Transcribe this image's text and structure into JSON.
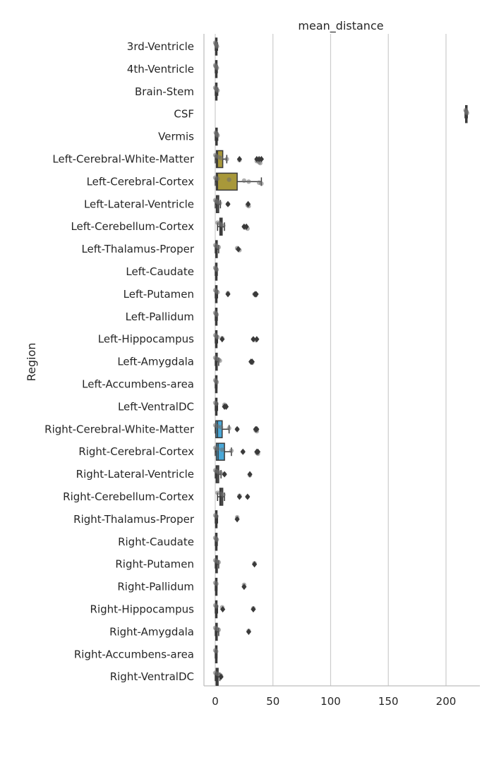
{
  "chart_data": {
    "type": "box",
    "orientation": "horizontal",
    "title": "mean_distance",
    "xlabel": "",
    "ylabel": "Region",
    "xlim": [
      -10,
      230
    ],
    "xticks": [
      0,
      50,
      100,
      150,
      200
    ],
    "grid": "vertical",
    "legend": "none",
    "categories": [
      "3rd-Ventricle",
      "4th-Ventricle",
      "Brain-Stem",
      "CSF",
      "Vermis",
      "Left-Cerebral-White-Matter",
      "Left-Cerebral-Cortex",
      "Left-Lateral-Ventricle",
      "Left-Cerebellum-Cortex",
      "Left-Thalamus-Proper",
      "Left-Caudate",
      "Left-Putamen",
      "Left-Pallidum",
      "Left-Hippocampus",
      "Left-Amygdala",
      "Left-Accumbens-area",
      "Left-VentralDC",
      "Right-Cerebral-White-Matter",
      "Right-Cerebral-Cortex",
      "Right-Lateral-Ventricle",
      "Right-Cerebellum-Cortex",
      "Right-Thalamus-Proper",
      "Right-Caudate",
      "Right-Putamen",
      "Right-Pallidum",
      "Right-Hippocampus",
      "Right-Amygdala",
      "Right-Accumbens-area",
      "Right-VentralDC"
    ],
    "colors": {
      "left_cortex_box": "#a8983a",
      "left_wm_box": "#a8983a",
      "right_box": "#4aa8d8",
      "default_box": "#5a5a5a",
      "points": "#6e6e6e",
      "outliers": "#3a3a3a",
      "grid": "#cccccc",
      "axis": "#bdbdbd"
    },
    "boxes": [
      {
        "q1": 0.3,
        "median": 0.8,
        "q3": 1.2,
        "whislo": 0,
        "whishi": 2,
        "fill": "default_box",
        "fliers": [],
        "points": [
          0,
          0.4,
          0.8,
          1.1,
          1.5
        ]
      },
      {
        "q1": 0.3,
        "median": 0.7,
        "q3": 1.1,
        "whislo": 0,
        "whishi": 1.8,
        "fill": "default_box",
        "fliers": [],
        "points": [
          0,
          0.3,
          0.9,
          1.4
        ]
      },
      {
        "q1": 0.3,
        "median": 0.8,
        "q3": 1.2,
        "whislo": 0,
        "whishi": 2.2,
        "fill": "default_box",
        "fliers": [],
        "points": [
          0,
          0.6,
          1.3,
          2.0
        ]
      },
      {
        "q1": 217,
        "median": 217.5,
        "q3": 218,
        "whislo": 216.5,
        "whishi": 218.5,
        "fill": "default_box",
        "fliers": [],
        "points": [
          217,
          217.4,
          217.8,
          218.2
        ]
      },
      {
        "q1": 0.5,
        "median": 1.0,
        "q3": 1.5,
        "whislo": 0,
        "whishi": 2.2,
        "fill": "default_box",
        "fliers": [],
        "points": [
          0.5,
          1.0,
          1.6,
          2.0
        ]
      },
      {
        "q1": 1.0,
        "median": 2.0,
        "q3": 6.5,
        "whislo": 0,
        "whishi": 10,
        "fill": "left_wm_box",
        "fliers": [
          21,
          36,
          38,
          40
        ],
        "points": [
          0,
          1,
          3,
          5,
          10,
          21,
          36,
          38,
          39
        ]
      },
      {
        "q1": 1.0,
        "median": 2.0,
        "q3": 19,
        "whislo": 0,
        "whishi": 40,
        "fill": "left_cortex_box",
        "fliers": [],
        "points": [
          0,
          2,
          12,
          25,
          29,
          38,
          40
        ]
      },
      {
        "q1": 1.0,
        "median": 1.5,
        "q3": 3.0,
        "whislo": 0,
        "whishi": 4.5,
        "fill": "default_box",
        "fliers": [
          11,
          28.5
        ],
        "points": [
          0,
          1,
          2,
          4,
          11,
          28,
          29
        ]
      },
      {
        "q1": 4.0,
        "median": 5.0,
        "q3": 6.0,
        "whislo": 2,
        "whishi": 8,
        "fill": "default_box",
        "fliers": [
          25,
          27
        ],
        "points": [
          2,
          4,
          5,
          7,
          25,
          26,
          28
        ]
      },
      {
        "q1": 0.5,
        "median": 1.0,
        "q3": 1.5,
        "whislo": 0,
        "whishi": 3,
        "fill": "default_box",
        "fliers": [
          20
        ],
        "points": [
          0,
          1,
          3,
          19,
          20,
          21
        ]
      },
      {
        "q1": 0.3,
        "median": 0.7,
        "q3": 1.1,
        "whislo": 0,
        "whishi": 1.8,
        "fill": "default_box",
        "fliers": [],
        "points": [
          0,
          0.5,
          1.2
        ]
      },
      {
        "q1": 0.3,
        "median": 0.8,
        "q3": 1.2,
        "whislo": 0,
        "whishi": 2,
        "fill": "default_box",
        "fliers": [
          11,
          34.5,
          35.5
        ],
        "points": [
          0,
          1,
          2,
          11,
          34,
          35
        ]
      },
      {
        "q1": 0.3,
        "median": 0.7,
        "q3": 1.1,
        "whislo": 0,
        "whishi": 1.8,
        "fill": "default_box",
        "fliers": [],
        "points": [
          0,
          0.6,
          1.2
        ]
      },
      {
        "q1": 0.3,
        "median": 0.8,
        "q3": 1.2,
        "whislo": 0,
        "whishi": 2,
        "fill": "default_box",
        "fliers": [
          6,
          33,
          36
        ],
        "points": [
          0,
          1,
          2,
          6,
          33,
          35
        ]
      },
      {
        "q1": 0.5,
        "median": 1.0,
        "q3": 1.5,
        "whislo": 0,
        "whishi": 3,
        "fill": "default_box",
        "fliers": [
          31,
          32
        ],
        "points": [
          0,
          1,
          3,
          4,
          31,
          32
        ]
      },
      {
        "q1": 0.3,
        "median": 0.7,
        "q3": 1.1,
        "whislo": 0,
        "whishi": 1.5,
        "fill": "default_box",
        "fliers": [],
        "points": [
          0,
          0.7,
          1.2
        ]
      },
      {
        "q1": 0.3,
        "median": 0.8,
        "q3": 1.2,
        "whislo": 0,
        "whishi": 2,
        "fill": "default_box",
        "fliers": [
          8,
          9.5
        ],
        "points": [
          0,
          1,
          8,
          9
        ]
      },
      {
        "q1": 0.5,
        "median": 2.0,
        "q3": 6.0,
        "whislo": 0,
        "whishi": 12,
        "fill": "right_box",
        "fliers": [
          19,
          35,
          36
        ],
        "points": [
          0,
          2,
          5,
          12,
          19,
          35,
          36
        ]
      },
      {
        "q1": 1.0,
        "median": 2.5,
        "q3": 8.0,
        "whislo": 0,
        "whishi": 14,
        "fill": "right_box",
        "fliers": [
          24,
          36,
          37
        ],
        "points": [
          0,
          2,
          6,
          14,
          24,
          36,
          37
        ]
      },
      {
        "q1": 0.8,
        "median": 1.5,
        "q3": 3.0,
        "whislo": 0,
        "whishi": 5,
        "fill": "default_box",
        "fliers": [
          8,
          30
        ],
        "points": [
          0,
          1,
          3,
          5,
          8,
          30
        ]
      },
      {
        "q1": 4.0,
        "median": 5.0,
        "q3": 6.5,
        "whislo": 2,
        "whishi": 8,
        "fill": "default_box",
        "fliers": [
          21,
          28
        ],
        "points": [
          2,
          5,
          7,
          21,
          28
        ]
      },
      {
        "q1": 0.3,
        "median": 0.8,
        "q3": 1.2,
        "whislo": 0,
        "whishi": 2,
        "fill": "default_box",
        "fliers": [
          19
        ],
        "points": [
          0,
          1,
          19
        ]
      },
      {
        "q1": 0.3,
        "median": 0.7,
        "q3": 1.1,
        "whislo": 0,
        "whishi": 1.8,
        "fill": "default_box",
        "fliers": [],
        "points": [
          0,
          0.8,
          1.3
        ]
      },
      {
        "q1": 0.5,
        "median": 1.0,
        "q3": 1.8,
        "whislo": 0,
        "whishi": 3,
        "fill": "default_box",
        "fliers": [
          34
        ],
        "points": [
          0,
          1,
          3,
          34
        ]
      },
      {
        "q1": 0.3,
        "median": 0.7,
        "q3": 1.1,
        "whislo": 0,
        "whishi": 1.5,
        "fill": "default_box",
        "fliers": [
          25
        ],
        "points": [
          0,
          1,
          25
        ]
      },
      {
        "q1": 0.3,
        "median": 0.8,
        "q3": 1.2,
        "whislo": 0,
        "whishi": 2,
        "fill": "default_box",
        "fliers": [
          6.5,
          33
        ],
        "points": [
          0,
          1,
          6,
          33
        ]
      },
      {
        "q1": 0.5,
        "median": 1.0,
        "q3": 1.5,
        "whislo": 0,
        "whishi": 3,
        "fill": "default_box",
        "fliers": [
          29
        ],
        "points": [
          0,
          1,
          3,
          29
        ]
      },
      {
        "q1": 0.3,
        "median": 0.7,
        "q3": 1.1,
        "whislo": 0,
        "whishi": 1.5,
        "fill": "default_box",
        "fliers": [],
        "points": [
          0,
          0.8
        ]
      },
      {
        "q1": 0.8,
        "median": 1.5,
        "q3": 2.5,
        "whislo": 0,
        "whishi": 4,
        "fill": "default_box",
        "fliers": [
          5
        ],
        "points": [
          0,
          2,
          4,
          5
        ]
      }
    ]
  }
}
